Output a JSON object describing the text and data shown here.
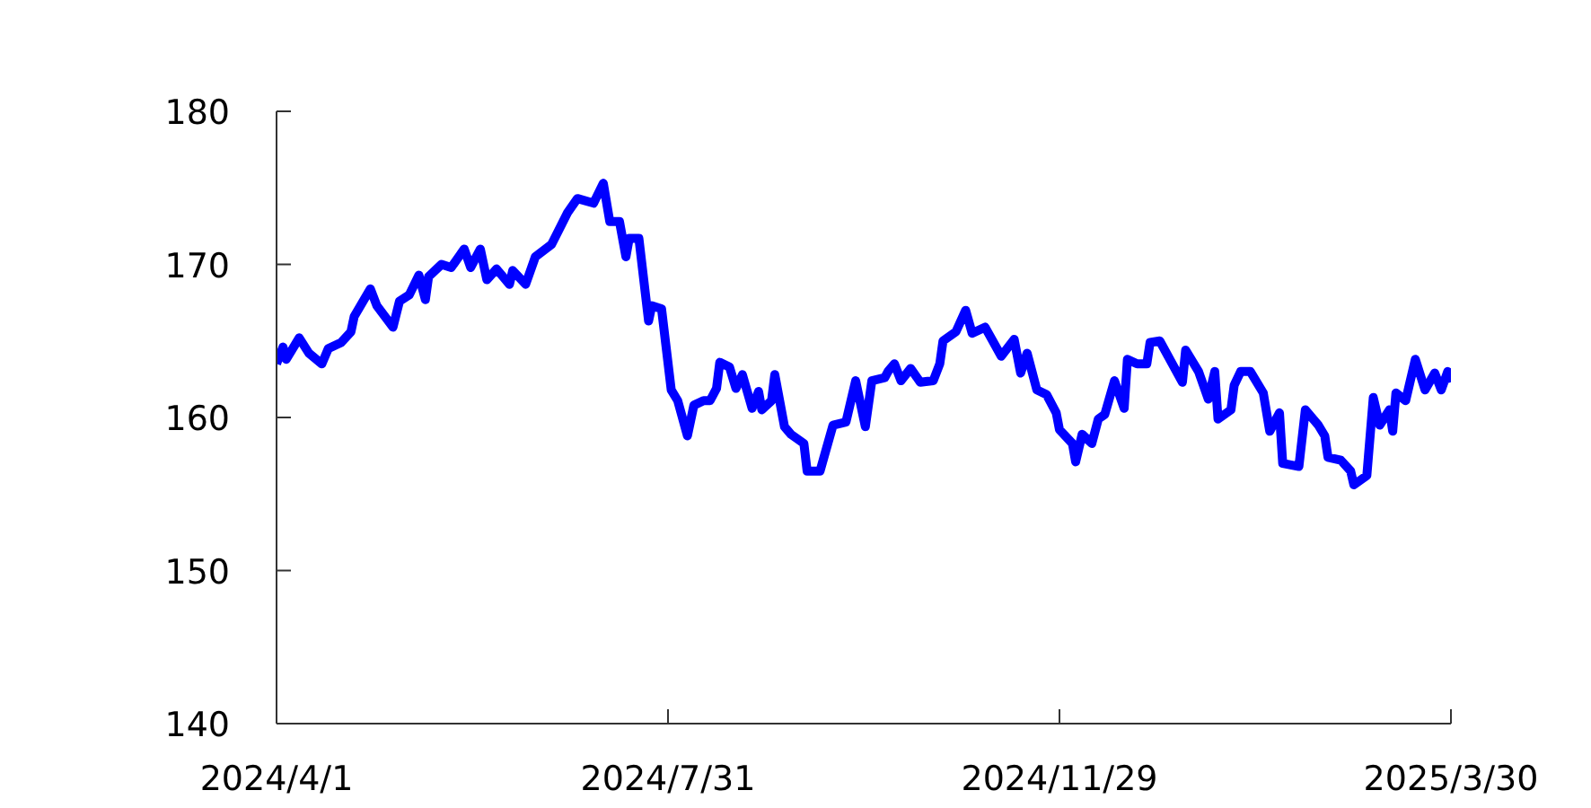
{
  "chart_data": {
    "type": "line",
    "x": [
      "2024-04-01",
      "2024-04-03",
      "2024-04-04",
      "2024-04-08",
      "2024-04-11",
      "2024-04-15",
      "2024-04-17",
      "2024-04-21",
      "2024-04-24",
      "2024-04-25",
      "2024-04-30",
      "2024-05-02",
      "2024-05-07",
      "2024-05-09",
      "2024-05-12",
      "2024-05-15",
      "2024-05-17",
      "2024-05-18",
      "2024-05-22",
      "2024-05-25",
      "2024-05-29",
      "2024-05-31",
      "2024-06-03",
      "2024-06-05",
      "2024-06-08",
      "2024-06-12",
      "2024-06-13",
      "2024-06-17",
      "2024-06-20",
      "2024-06-25",
      "2024-06-30",
      "2024-07-03",
      "2024-07-08",
      "2024-07-11",
      "2024-07-13",
      "2024-07-16",
      "2024-07-18",
      "2024-07-19",
      "2024-07-22",
      "2024-07-25",
      "2024-07-26",
      "2024-07-29",
      "2024-08-01",
      "2024-08-03",
      "2024-08-06",
      "2024-08-08",
      "2024-08-11",
      "2024-08-13",
      "2024-08-15",
      "2024-08-16",
      "2024-08-19",
      "2024-08-21",
      "2024-08-23",
      "2024-08-26",
      "2024-08-28",
      "2024-08-29",
      "2024-09-01",
      "2024-09-02",
      "2024-09-05",
      "2024-09-07",
      "2024-09-11",
      "2024-09-12",
      "2024-09-16",
      "2024-09-20",
      "2024-09-24",
      "2024-09-27",
      "2024-09-30",
      "2024-10-02",
      "2024-10-06",
      "2024-10-07",
      "2024-10-09",
      "2024-10-11",
      "2024-10-14",
      "2024-10-17",
      "2024-10-21",
      "2024-10-23",
      "2024-10-24",
      "2024-10-28",
      "2024-10-31",
      "2024-11-02",
      "2024-11-06",
      "2024-11-11",
      "2024-11-15",
      "2024-11-17",
      "2024-11-19",
      "2024-11-22",
      "2024-11-25",
      "2024-11-28",
      "2024-11-29",
      "2024-12-03",
      "2024-12-04",
      "2024-12-06",
      "2024-12-09",
      "2024-12-11",
      "2024-12-13",
      "2024-12-16",
      "2024-12-19",
      "2024-12-20",
      "2024-12-23",
      "2024-12-26",
      "2024-12-27",
      "2024-12-30",
      "2025-01-06",
      "2025-01-07",
      "2025-01-11",
      "2025-01-14",
      "2025-01-16",
      "2025-01-17",
      "2025-01-21",
      "2025-01-22",
      "2025-01-24",
      "2025-01-27",
      "2025-01-31",
      "2025-02-02",
      "2025-02-05",
      "2025-02-06",
      "2025-02-11",
      "2025-02-13",
      "2025-02-17",
      "2025-02-19",
      "2025-02-20",
      "2025-02-24",
      "2025-02-27",
      "2025-02-28",
      "2025-03-04",
      "2025-03-06",
      "2025-03-08",
      "2025-03-11",
      "2025-03-12",
      "2025-03-13",
      "2025-03-16",
      "2025-03-19",
      "2025-03-22",
      "2025-03-25",
      "2025-03-27",
      "2025-03-29",
      "2025-03-30"
    ],
    "series": [
      {
        "color": "#0000ff",
        "values": [
          163.5,
          164.6,
          163.8,
          165.2,
          164.2,
          163.5,
          164.5,
          164.9,
          165.6,
          166.6,
          168.4,
          167.3,
          165.9,
          167.6,
          168.0,
          169.3,
          167.7,
          169.2,
          170.0,
          169.8,
          171.0,
          169.8,
          171.0,
          169.0,
          169.7,
          168.7,
          169.6,
          168.7,
          170.5,
          171.3,
          173.4,
          174.3,
          174.0,
          175.3,
          172.8,
          172.8,
          170.5,
          171.7,
          171.7,
          166.3,
          167.3,
          167.1,
          161.8,
          161.1,
          158.8,
          160.8,
          161.1,
          161.1,
          161.9,
          163.6,
          163.3,
          161.9,
          162.8,
          160.6,
          161.7,
          160.5,
          161.1,
          162.8,
          159.4,
          158.9,
          158.3,
          156.5,
          156.5,
          159.5,
          159.7,
          162.4,
          159.4,
          162.4,
          162.6,
          163.0,
          163.5,
          162.4,
          163.2,
          162.3,
          162.4,
          163.5,
          165.0,
          165.6,
          167.0,
          165.5,
          165.9,
          164.0,
          165.1,
          162.9,
          164.2,
          161.8,
          161.5,
          160.3,
          159.2,
          158.3,
          157.1,
          158.9,
          158.3,
          159.9,
          160.2,
          162.4,
          160.6,
          163.8,
          163.5,
          163.5,
          164.9,
          165.0,
          162.3,
          164.4,
          163.0,
          161.2,
          163.0,
          159.9,
          160.5,
          162.1,
          163.0,
          163.0,
          161.6,
          159.1,
          160.3,
          157.0,
          156.8,
          160.5,
          159.5,
          158.8,
          157.4,
          157.2,
          156.5,
          155.6,
          156.2,
          161.3,
          159.5,
          160.5,
          159.1,
          161.6,
          161.1,
          163.8,
          161.8,
          162.9,
          161.8,
          163.0,
          162.3
        ]
      }
    ],
    "xlim": [
      "2024-04-01",
      "2025-03-30"
    ],
    "xticks": [
      {
        "value": "2024-04-01",
        "label": "2024/4/1"
      },
      {
        "value": "2024-07-31",
        "label": "2024/7/31"
      },
      {
        "value": "2024-11-29",
        "label": "2024/11/29"
      },
      {
        "value": "2025-03-30",
        "label": "2025/3/30"
      }
    ],
    "ylim": [
      140,
      180
    ],
    "yticks": [
      140,
      150,
      160,
      170,
      180
    ],
    "marker": "none",
    "line_style": "solid"
  }
}
